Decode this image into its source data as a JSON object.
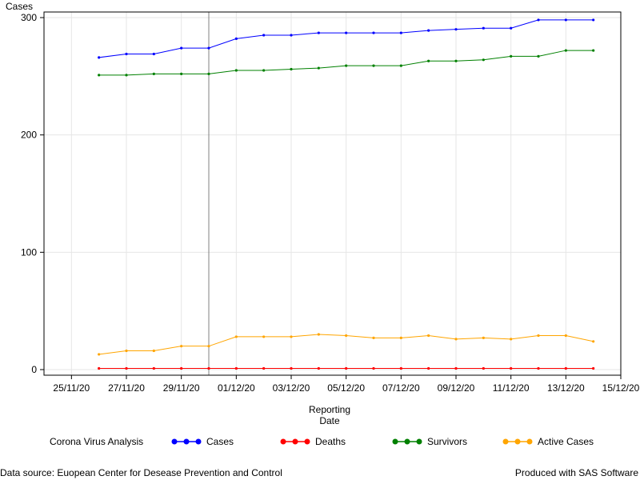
{
  "chart_data": {
    "type": "line",
    "title": "",
    "xlabel": [
      "Reporting",
      "Date"
    ],
    "ylabel": "Cases",
    "x_tick_labels": [
      "25/11/20",
      "27/11/20",
      "29/11/20",
      "01/12/20",
      "03/12/20",
      "05/12/20",
      "07/12/20",
      "09/12/20",
      "11/12/20",
      "13/12/20",
      "15/12/20"
    ],
    "y_tick_labels": [
      "0",
      "100",
      "200",
      "300"
    ],
    "ylim": [
      0,
      300
    ],
    "xlim": [
      "24/11/20",
      "15/12/20"
    ],
    "grid": true,
    "reference_line_x": "30/11/20",
    "legend_position": "bottom",
    "legend_title": "Corona Virus Analysis",
    "x": [
      "26/11/20",
      "27/11/20",
      "28/11/20",
      "29/11/20",
      "30/11/20",
      "01/12/20",
      "02/12/20",
      "03/12/20",
      "04/12/20",
      "05/12/20",
      "06/12/20",
      "07/12/20",
      "08/12/20",
      "09/12/20",
      "10/12/20",
      "11/12/20",
      "12/12/20",
      "13/12/20",
      "14/12/20"
    ],
    "series": [
      {
        "name": "Cases",
        "color": "#0000ff",
        "values": [
          266,
          269,
          269,
          274,
          274,
          282,
          285,
          285,
          287,
          287,
          287,
          287,
          289,
          290,
          291,
          291,
          298,
          298,
          298
        ]
      },
      {
        "name": "Deaths",
        "color": "#ff0000",
        "values": [
          1,
          1,
          1,
          1,
          1,
          1,
          1,
          1,
          1,
          1,
          1,
          1,
          1,
          1,
          1,
          1,
          1,
          1,
          1
        ]
      },
      {
        "name": "Survivors",
        "color": "#008000",
        "values": [
          251,
          251,
          252,
          252,
          252,
          255,
          255,
          256,
          257,
          259,
          259,
          259,
          263,
          263,
          264,
          267,
          267,
          272,
          272
        ]
      },
      {
        "name": "Active Cases",
        "color": "#ffa500",
        "values": [
          13,
          16,
          16,
          20,
          20,
          28,
          28,
          28,
          30,
          29,
          27,
          27,
          29,
          26,
          27,
          26,
          29,
          29,
          24
        ]
      }
    ]
  },
  "footer": {
    "source": "Data source: Euopean Center for Desease Prevention and Control",
    "produced": "Produced with SAS Software"
  }
}
